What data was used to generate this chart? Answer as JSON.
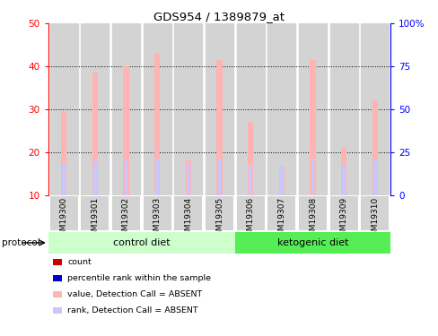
{
  "title": "GDS954 / 1389879_at",
  "samples": [
    "GSM19300",
    "GSM19301",
    "GSM19302",
    "GSM19303",
    "GSM19304",
    "GSM19305",
    "GSM19306",
    "GSM19307",
    "GSM19308",
    "GSM19309",
    "GSM19310"
  ],
  "values_absent": [
    29.5,
    38.5,
    40.0,
    43.0,
    18.0,
    41.5,
    27.0,
    16.5,
    41.5,
    21.0,
    32.0
  ],
  "rank_absent": [
    18.5,
    19.5,
    20.0,
    21.0,
    18.5,
    21.0,
    17.5,
    17.0,
    21.0,
    17.5,
    20.0
  ],
  "ylim_left": [
    10,
    50
  ],
  "ylim_right": [
    0,
    100
  ],
  "yticks_left": [
    10,
    20,
    30,
    40,
    50
  ],
  "yticks_right": [
    0,
    25,
    50,
    75,
    100
  ],
  "n_control": 6,
  "n_keto": 5,
  "color_absent_value": "#FFB3B3",
  "color_absent_rank": "#C8C8FF",
  "color_count": "#CC0000",
  "color_rank": "#0000CC",
  "control_bg": "#CCFFCC",
  "ketogenic_bg": "#55EE55",
  "bar_bg": "#D3D3D3",
  "plot_bg": "#FFFFFF",
  "fig_width": 4.89,
  "fig_height": 3.75
}
